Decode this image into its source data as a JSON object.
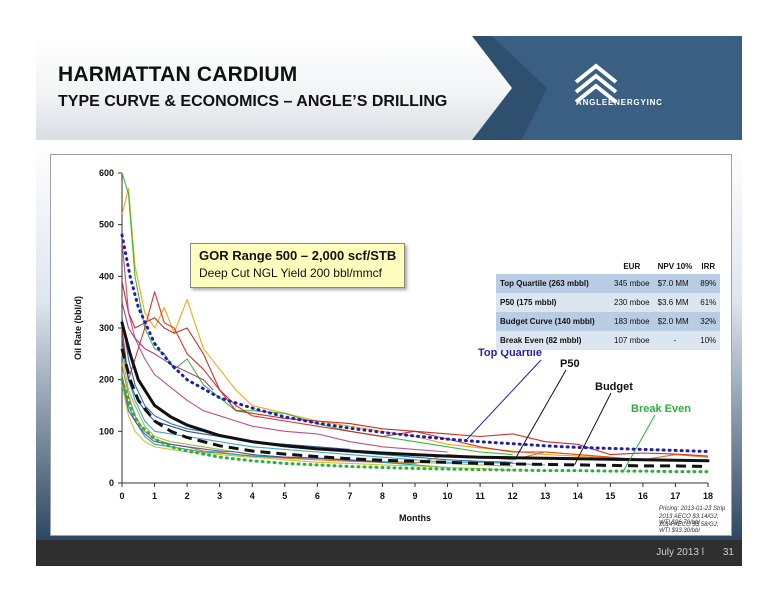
{
  "header": {
    "title_line1": "HARMATTAN CARDIUM",
    "title_line2": "TYPE CURVE & ECONOMICS – ANGLE’S DRILLING",
    "logo_text": "ANGLEENERGYINC"
  },
  "gor_box": {
    "line1": "GOR Range 500 – 2,000 scf/STB",
    "line2": "Deep Cut NGL Yield 200 bbl/mmcf"
  },
  "econ_table": {
    "headers": [
      "",
      "EUR",
      "NPV 10%",
      "IRR"
    ],
    "rows": [
      {
        "label": "Top Quartile (263 mbbl)",
        "eur": "345 mboe",
        "npv": "$7.0 MM",
        "irr": "89%"
      },
      {
        "label": "P50 (175 mbbl)",
        "eur": "230 mboe",
        "npv": "$3.6 MM",
        "irr": "61%"
      },
      {
        "label": "Budget Curve (140 mbbl)",
        "eur": "183 mboe",
        "npv": "$2.0 MM",
        "irr": "32%"
      },
      {
        "label": "Break Even (82 mbbl)",
        "eur": "107 mboe",
        "npv": "-",
        "irr": "10%"
      }
    ]
  },
  "annotations": {
    "top_quartile": "Top Quartile",
    "p50": "P50",
    "budget": "Budget",
    "break_even": "Break Even"
  },
  "pricing": {
    "line1": "Pricing: 2013-01-23 Strip",
    "line2": "2013 AECO $3.14/GJ; WTI $96.70/bbl",
    "line3": "2014 AECO $3.58/GJ; WTI $93.30/bbl"
  },
  "footer": {
    "date": "July 2013 l",
    "page": "31"
  },
  "colors": {
    "top_quartile": "#1f1fb4",
    "p50": "#111111",
    "budget": "#111111",
    "break_even": "#2eae3e",
    "slide_dark": "#1d2c3c"
  },
  "chart_data": {
    "type": "line",
    "xlabel": "Months",
    "ylabel": "Oil Rate (bbl/d)",
    "xlim": [
      0,
      18
    ],
    "ylim": [
      0,
      600
    ],
    "x_ticks": [
      "0",
      "1",
      "2",
      "3",
      "4",
      "5",
      "6",
      "7",
      "8",
      "9",
      "10",
      "11",
      "12",
      "13",
      "14",
      "15",
      "16",
      "17",
      "18"
    ],
    "y_ticks": [
      "0",
      "100",
      "200",
      "300",
      "400",
      "500",
      "600"
    ],
    "grid": false,
    "type_curves": [
      {
        "name": "Top Quartile",
        "style": "dotted",
        "color": "#1f1fb4",
        "x": [
          0,
          0.25,
          0.5,
          1,
          1.5,
          2,
          3,
          4,
          5,
          6,
          7,
          8,
          9,
          10,
          11,
          12,
          13,
          14,
          15,
          16,
          17,
          18
        ],
        "y": [
          480,
          400,
          340,
          270,
          230,
          200,
          165,
          145,
          128,
          116,
          106,
          98,
          91,
          85,
          80,
          76,
          72,
          69,
          67,
          65,
          63,
          61
        ]
      },
      {
        "name": "P50",
        "style": "solid",
        "color": "#111111",
        "x": [
          0,
          0.25,
          0.5,
          1,
          1.5,
          2,
          3,
          4,
          5,
          6,
          7,
          8,
          9,
          10,
          11,
          12,
          13,
          14,
          15,
          16,
          17,
          18
        ],
        "y": [
          310,
          250,
          200,
          150,
          128,
          112,
          92,
          80,
          72,
          66,
          62,
          58,
          55,
          52,
          50,
          49,
          48,
          47,
          46,
          45,
          44,
          43
        ]
      },
      {
        "name": "Budget",
        "style": "dashed",
        "color": "#111111",
        "x": [
          0,
          0.25,
          0.5,
          1,
          1.5,
          2,
          3,
          4,
          5,
          6,
          7,
          8,
          9,
          10,
          11,
          12,
          13,
          14,
          15,
          16,
          17,
          18
        ],
        "y": [
          260,
          200,
          160,
          120,
          100,
          88,
          72,
          62,
          56,
          51,
          47,
          44,
          42,
          40,
          38,
          37,
          36,
          35,
          34,
          33,
          33,
          32
        ]
      },
      {
        "name": "Break Even",
        "style": "dotted",
        "color": "#2eae3e",
        "x": [
          0,
          0.25,
          0.5,
          1,
          1.5,
          2,
          3,
          4,
          5,
          6,
          7,
          8,
          9,
          10,
          11,
          12,
          13,
          14,
          15,
          16,
          17,
          18
        ],
        "y": [
          200,
          150,
          115,
          85,
          70,
          62,
          50,
          43,
          38,
          35,
          32,
          30,
          28,
          27,
          26,
          25,
          24,
          24,
          23,
          23,
          22,
          22
        ]
      }
    ],
    "well_series": [
      {
        "color": "#f0a000",
        "x": [
          0,
          0.2,
          0.4,
          0.7,
          1,
          1.3,
          1.6,
          2,
          2.5,
          3,
          3.5,
          4,
          5,
          6,
          7,
          8,
          9,
          10,
          11,
          12,
          13,
          14,
          15,
          16,
          17,
          18
        ],
        "y": [
          520,
          570,
          420,
          330,
          300,
          340,
          290,
          355,
          260,
          220,
          180,
          150,
          135,
          120,
          110,
          100,
          90,
          75,
          68,
          62,
          55,
          52,
          48,
          45,
          44,
          43
        ]
      },
      {
        "color": "#2ab02a",
        "x": [
          0,
          0.2,
          0.4,
          0.7,
          1,
          1.3,
          1.6,
          2,
          2.5,
          3,
          3.5,
          4,
          5,
          6,
          7,
          8,
          9,
          10,
          11,
          12
        ],
        "y": [
          600,
          560,
          400,
          300,
          260,
          250,
          220,
          240,
          190,
          165,
          140,
          140,
          135,
          115,
          100,
          90,
          80,
          70,
          60,
          55
        ]
      },
      {
        "color": "#c01818",
        "x": [
          0,
          0.2,
          0.4,
          0.7,
          1,
          1.3,
          1.6,
          2,
          2.5,
          3,
          3.5,
          4,
          5,
          6,
          7,
          8,
          9,
          10,
          11,
          12,
          13,
          14,
          15,
          16,
          17,
          18
        ],
        "y": [
          390,
          330,
          300,
          310,
          320,
          300,
          290,
          300,
          250,
          180,
          140,
          135,
          125,
          120,
          115,
          105,
          100,
          95,
          90,
          95,
          80,
          75,
          55,
          58,
          56,
          52
        ]
      },
      {
        "color": "#d02020",
        "x": [
          0,
          0.2,
          0.4,
          0.7,
          1,
          1.3,
          1.6,
          2,
          2.5,
          3,
          3.5,
          4,
          5,
          6,
          7,
          8,
          9,
          10,
          11,
          12,
          13,
          14,
          15
        ],
        "y": [
          300,
          200,
          240,
          300,
          370,
          310,
          300,
          250,
          220,
          180,
          150,
          130,
          120,
          110,
          100,
          90,
          100,
          85,
          70,
          60,
          60,
          55,
          50
        ]
      },
      {
        "color": "#b04080",
        "x": [
          0,
          0.2,
          0.4,
          0.7,
          1,
          1.5,
          2,
          2.5,
          3,
          3.5,
          4,
          5,
          6,
          7,
          8,
          9,
          10
        ],
        "y": [
          470,
          330,
          280,
          240,
          210,
          185,
          160,
          140,
          130,
          120,
          110,
          100,
          95,
          80,
          70,
          65,
          60
        ]
      },
      {
        "color": "#1060c0",
        "x": [
          0,
          0.2,
          0.4,
          0.7,
          1,
          1.5,
          2,
          2.5,
          3,
          3.5,
          4,
          5,
          6,
          7,
          8,
          9,
          10,
          11,
          12
        ],
        "y": [
          320,
          240,
          190,
          150,
          130,
          115,
          105,
          100,
          90,
          85,
          80,
          70,
          65,
          60,
          55,
          50,
          45,
          42,
          40
        ]
      },
      {
        "color": "#30a0c0",
        "x": [
          0,
          0.2,
          0.4,
          0.7,
          1,
          1.5,
          2,
          2.5,
          3,
          3.5,
          4,
          5,
          6,
          7,
          8,
          9,
          10,
          11,
          12,
          13
        ],
        "y": [
          260,
          200,
          160,
          120,
          100,
          95,
          90,
          85,
          80,
          75,
          70,
          65,
          60,
          55,
          50,
          45,
          40,
          40,
          38,
          35
        ]
      },
      {
        "color": "#80c040",
        "x": [
          0,
          0.2,
          0.4,
          0.7,
          1,
          1.5,
          2,
          2.5,
          3,
          3.5,
          4,
          5,
          6,
          7,
          8,
          9,
          10,
          11,
          12
        ],
        "y": [
          250,
          180,
          150,
          110,
          90,
          80,
          75,
          70,
          65,
          60,
          55,
          50,
          48,
          45,
          42,
          40,
          38,
          35,
          33
        ]
      },
      {
        "color": "#e06010",
        "x": [
          0,
          0.2,
          0.4,
          0.7,
          1,
          1.5,
          2,
          2.5,
          3,
          3.5,
          4,
          5,
          6,
          7,
          8,
          9,
          10,
          11,
          12,
          13,
          14,
          15,
          16,
          17,
          18
        ],
        "y": [
          230,
          170,
          130,
          100,
          85,
          75,
          70,
          62,
          60,
          55,
          52,
          48,
          45,
          42,
          40,
          38,
          55,
          50,
          45,
          60,
          55,
          50,
          45,
          55,
          50
        ]
      },
      {
        "color": "#00a0a0",
        "x": [
          0,
          0.2,
          0.4,
          0.7,
          1,
          1.5,
          2,
          2.5,
          3,
          3.5,
          4,
          5,
          6,
          7,
          8,
          9,
          10
        ],
        "y": [
          210,
          150,
          120,
          90,
          75,
          70,
          65,
          60,
          58,
          55,
          52,
          50,
          48,
          45,
          40,
          35,
          30
        ]
      },
      {
        "color": "#a03060",
        "x": [
          0,
          0.2,
          0.4,
          0.7,
          1,
          1.5,
          2,
          2.5,
          2.8
        ],
        "y": [
          350,
          300,
          280,
          260,
          250,
          230,
          215,
          200,
          180
        ]
      },
      {
        "color": "#6040a0",
        "x": [
          0,
          0.2,
          0.4,
          0.7,
          1,
          1.5,
          2,
          2.5,
          3,
          3.5,
          4,
          5,
          6,
          7,
          8
        ],
        "y": [
          200,
          140,
          120,
          95,
          80,
          75,
          70,
          66,
          62,
          60,
          55,
          50,
          48,
          44,
          40
        ]
      },
      {
        "color": "#c0c020",
        "x": [
          0,
          0.2,
          0.4,
          0.7,
          1,
          1.5,
          2,
          2.5,
          3,
          3.5,
          4,
          5,
          6,
          7,
          8,
          9,
          10,
          11,
          12
        ],
        "y": [
          190,
          130,
          100,
          80,
          70,
          65,
          60,
          58,
          55,
          52,
          50,
          45,
          40,
          38,
          35,
          33,
          30,
          28,
          25
        ]
      },
      {
        "color": "#204080",
        "x": [
          0,
          0.2,
          0.4,
          0.7,
          1,
          1.5,
          2,
          2.5,
          3,
          3.5,
          4,
          5,
          6,
          7
        ],
        "y": [
          280,
          200,
          170,
          140,
          120,
          110,
          100,
          95,
          90,
          85,
          80,
          75,
          70,
          65
        ]
      }
    ]
  }
}
